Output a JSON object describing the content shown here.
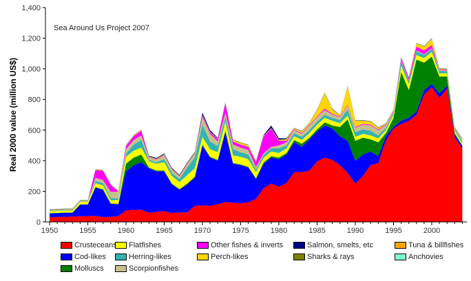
{
  "chart_data": {
    "type": "area",
    "stacked": true,
    "title": "",
    "annotation": "Sea Around Us Project 2007",
    "xlabel": "",
    "ylabel": "Real 2000 value (million US$)",
    "xlim": [
      1950,
      2004
    ],
    "ylim": [
      0,
      1400
    ],
    "x_ticks": [
      "1950",
      "1955",
      "1960",
      "1965",
      "1970",
      "1975",
      "1980",
      "1985",
      "1990",
      "1995",
      "2000"
    ],
    "y_ticks": [
      "0",
      "200",
      "400",
      "600",
      "800",
      "1,000",
      "1,200",
      "1,400"
    ],
    "grid": false,
    "legend_placement": "bottom",
    "x": [
      1950,
      1951,
      1952,
      1953,
      1954,
      1955,
      1956,
      1957,
      1958,
      1959,
      1960,
      1961,
      1962,
      1963,
      1964,
      1965,
      1966,
      1967,
      1968,
      1969,
      1970,
      1971,
      1972,
      1973,
      1974,
      1975,
      1976,
      1977,
      1978,
      1979,
      1980,
      1981,
      1982,
      1983,
      1984,
      1985,
      1986,
      1987,
      1988,
      1989,
      1990,
      1991,
      1992,
      1993,
      1994,
      1995,
      1996,
      1997,
      1998,
      1999,
      2000,
      2001,
      2002,
      2003,
      2004
    ],
    "series": [
      {
        "name": "Crusteceans",
        "color": "#ff0000",
        "values": [
          30,
          32,
          33,
          35,
          37,
          38,
          40,
          32,
          33,
          38,
          75,
          78,
          80,
          60,
          65,
          70,
          58,
          62,
          62,
          105,
          108,
          105,
          115,
          130,
          125,
          122,
          128,
          150,
          220,
          250,
          230,
          255,
          325,
          325,
          335,
          395,
          420,
          405,
          370,
          320,
          250,
          300,
          370,
          385,
          530,
          610,
          640,
          660,
          700,
          830,
          880,
          810,
          870,
          550,
          480
        ]
      },
      {
        "name": "Cod-likes",
        "color": "#0000ff",
        "values": [
          25,
          25,
          27,
          25,
          76,
          75,
          185,
          178,
          85,
          77,
          255,
          292,
          310,
          290,
          265,
          260,
          187,
          148,
          183,
          185,
          392,
          315,
          285,
          460,
          255,
          248,
          227,
          130,
          160,
          170,
          180,
          185,
          195,
          165,
          205,
          195,
          210,
          205,
          190,
          210,
          150,
          140,
          90,
          45,
          30,
          10,
          20,
          20,
          20,
          30,
          20,
          30,
          20,
          20,
          15
        ]
      },
      {
        "name": "Molluscs",
        "color": "#008000",
        "values": [
          2,
          2,
          2,
          2,
          2,
          2,
          3,
          3,
          3,
          3,
          50,
          50,
          50,
          5,
          5,
          5,
          5,
          5,
          5,
          5,
          5,
          5,
          5,
          5,
          5,
          5,
          5,
          5,
          8,
          10,
          10,
          10,
          15,
          20,
          10,
          15,
          20,
          20,
          60,
          140,
          130,
          110,
          80,
          90,
          20,
          60,
          320,
          180,
          340,
          180,
          180,
          110,
          60,
          10,
          5
        ]
      },
      {
        "name": "Flatfishes",
        "color": "#ffff00",
        "values": [
          12,
          12,
          12,
          12,
          15,
          15,
          25,
          25,
          20,
          25,
          45,
          45,
          45,
          40,
          45,
          55,
          50,
          45,
          55,
          55,
          50,
          50,
          50,
          60,
          50,
          50,
          50,
          40,
          30,
          30,
          30,
          30,
          25,
          25,
          30,
          30,
          30,
          30,
          25,
          25,
          25,
          25,
          25,
          25,
          20,
          20,
          40,
          40,
          30,
          30,
          30,
          20,
          20,
          15,
          15
        ]
      },
      {
        "name": "Herring-likes",
        "color": "#33b3b3",
        "values": [
          3,
          3,
          3,
          3,
          3,
          3,
          15,
          15,
          15,
          10,
          20,
          40,
          50,
          10,
          10,
          20,
          20,
          20,
          50,
          70,
          80,
          50,
          40,
          30,
          40,
          30,
          30,
          15,
          20,
          20,
          30,
          20,
          20,
          20,
          20,
          20,
          20,
          20,
          20,
          40,
          30,
          30,
          30,
          20,
          15,
          10,
          30,
          20,
          25,
          20,
          20,
          15,
          15,
          10,
          10
        ]
      },
      {
        "name": "Scorpionfishes",
        "color": "#c8c08a",
        "values": [
          5,
          5,
          5,
          5,
          5,
          5,
          20,
          20,
          40,
          45,
          30,
          30,
          30,
          15,
          15,
          25,
          20,
          15,
          20,
          25,
          50,
          50,
          30,
          30,
          30,
          30,
          30,
          20,
          10,
          10,
          20,
          20,
          20,
          20,
          30,
          30,
          30,
          20,
          20,
          25,
          30,
          30,
          35,
          35,
          15,
          10,
          5,
          5,
          5,
          5,
          5,
          5,
          5,
          5,
          10
        ]
      },
      {
        "name": "Other fishes & inverts",
        "color": "#ff00ff",
        "values": [
          0,
          0,
          0,
          0,
          0,
          0,
          50,
          60,
          45,
          0,
          20,
          25,
          30,
          3,
          3,
          3,
          3,
          3,
          3,
          3,
          10,
          10,
          15,
          60,
          20,
          20,
          20,
          30,
          110,
          120,
          30,
          10,
          5,
          5,
          5,
          5,
          10,
          5,
          5,
          5,
          5,
          5,
          5,
          5,
          5,
          5,
          15,
          15,
          25,
          25,
          20,
          5,
          5,
          3,
          3
        ]
      },
      {
        "name": "Perch-likes",
        "color": "#ffd700",
        "values": [
          1,
          1,
          1,
          1,
          1,
          1,
          2,
          2,
          2,
          2,
          3,
          3,
          3,
          3,
          3,
          3,
          3,
          3,
          3,
          3,
          3,
          3,
          3,
          3,
          10,
          10,
          10,
          3,
          3,
          3,
          5,
          10,
          5,
          10,
          10,
          40,
          100,
          30,
          5,
          120,
          40,
          20,
          20,
          10,
          5,
          3,
          3,
          3,
          20,
          25,
          40,
          5,
          3,
          3,
          3
        ]
      },
      {
        "name": "Tuna & billfishes",
        "color": "#ffa500",
        "values": [
          1,
          1,
          1,
          1,
          1,
          1,
          1,
          1,
          1,
          1,
          1,
          1,
          1,
          1,
          1,
          1,
          1,
          1,
          1,
          1,
          1,
          1,
          1,
          1,
          1,
          1,
          1,
          1,
          1,
          1,
          1,
          1,
          1,
          1,
          1,
          1,
          1,
          1,
          1,
          1,
          1,
          1,
          1,
          1,
          1,
          1,
          1,
          1,
          1,
          1,
          1,
          1,
          1,
          1,
          1
        ]
      },
      {
        "name": "Salmon, smelts, etc",
        "color": "#00008b",
        "values": [
          2,
          2,
          2,
          2,
          2,
          2,
          2,
          2,
          2,
          2,
          2,
          2,
          2,
          5,
          5,
          5,
          5,
          5,
          5,
          5,
          15,
          10,
          5,
          2,
          2,
          2,
          2,
          2,
          5,
          15,
          10,
          5,
          2,
          2,
          2,
          2,
          2,
          2,
          2,
          2,
          2,
          2,
          2,
          2,
          2,
          2,
          2,
          2,
          2,
          2,
          2,
          2,
          2,
          2,
          2
        ]
      },
      {
        "name": "Sharks & rays",
        "color": "#808000",
        "values": [
          1,
          1,
          1,
          1,
          1,
          1,
          1,
          1,
          1,
          1,
          1,
          1,
          1,
          1,
          1,
          1,
          1,
          1,
          1,
          1,
          1,
          1,
          1,
          1,
          1,
          1,
          1,
          1,
          1,
          1,
          1,
          1,
          1,
          1,
          1,
          1,
          1,
          1,
          1,
          1,
          1,
          1,
          1,
          1,
          1,
          1,
          1,
          1,
          1,
          1,
          2,
          1,
          1,
          1,
          1
        ]
      },
      {
        "name": "Anchovies",
        "color": "#7fffd4",
        "values": [
          1,
          1,
          1,
          1,
          1,
          1,
          1,
          1,
          1,
          1,
          1,
          1,
          1,
          1,
          1,
          1,
          1,
          1,
          1,
          1,
          1,
          1,
          1,
          1,
          1,
          1,
          1,
          1,
          1,
          1,
          1,
          1,
          1,
          1,
          1,
          1,
          1,
          1,
          1,
          1,
          1,
          1,
          1,
          1,
          1,
          1,
          1,
          1,
          1,
          1,
          1,
          1,
          1,
          1,
          1
        ]
      }
    ]
  },
  "legend_order": [
    0,
    3,
    6,
    9,
    8,
    1,
    4,
    7,
    10,
    11,
    2,
    5
  ]
}
